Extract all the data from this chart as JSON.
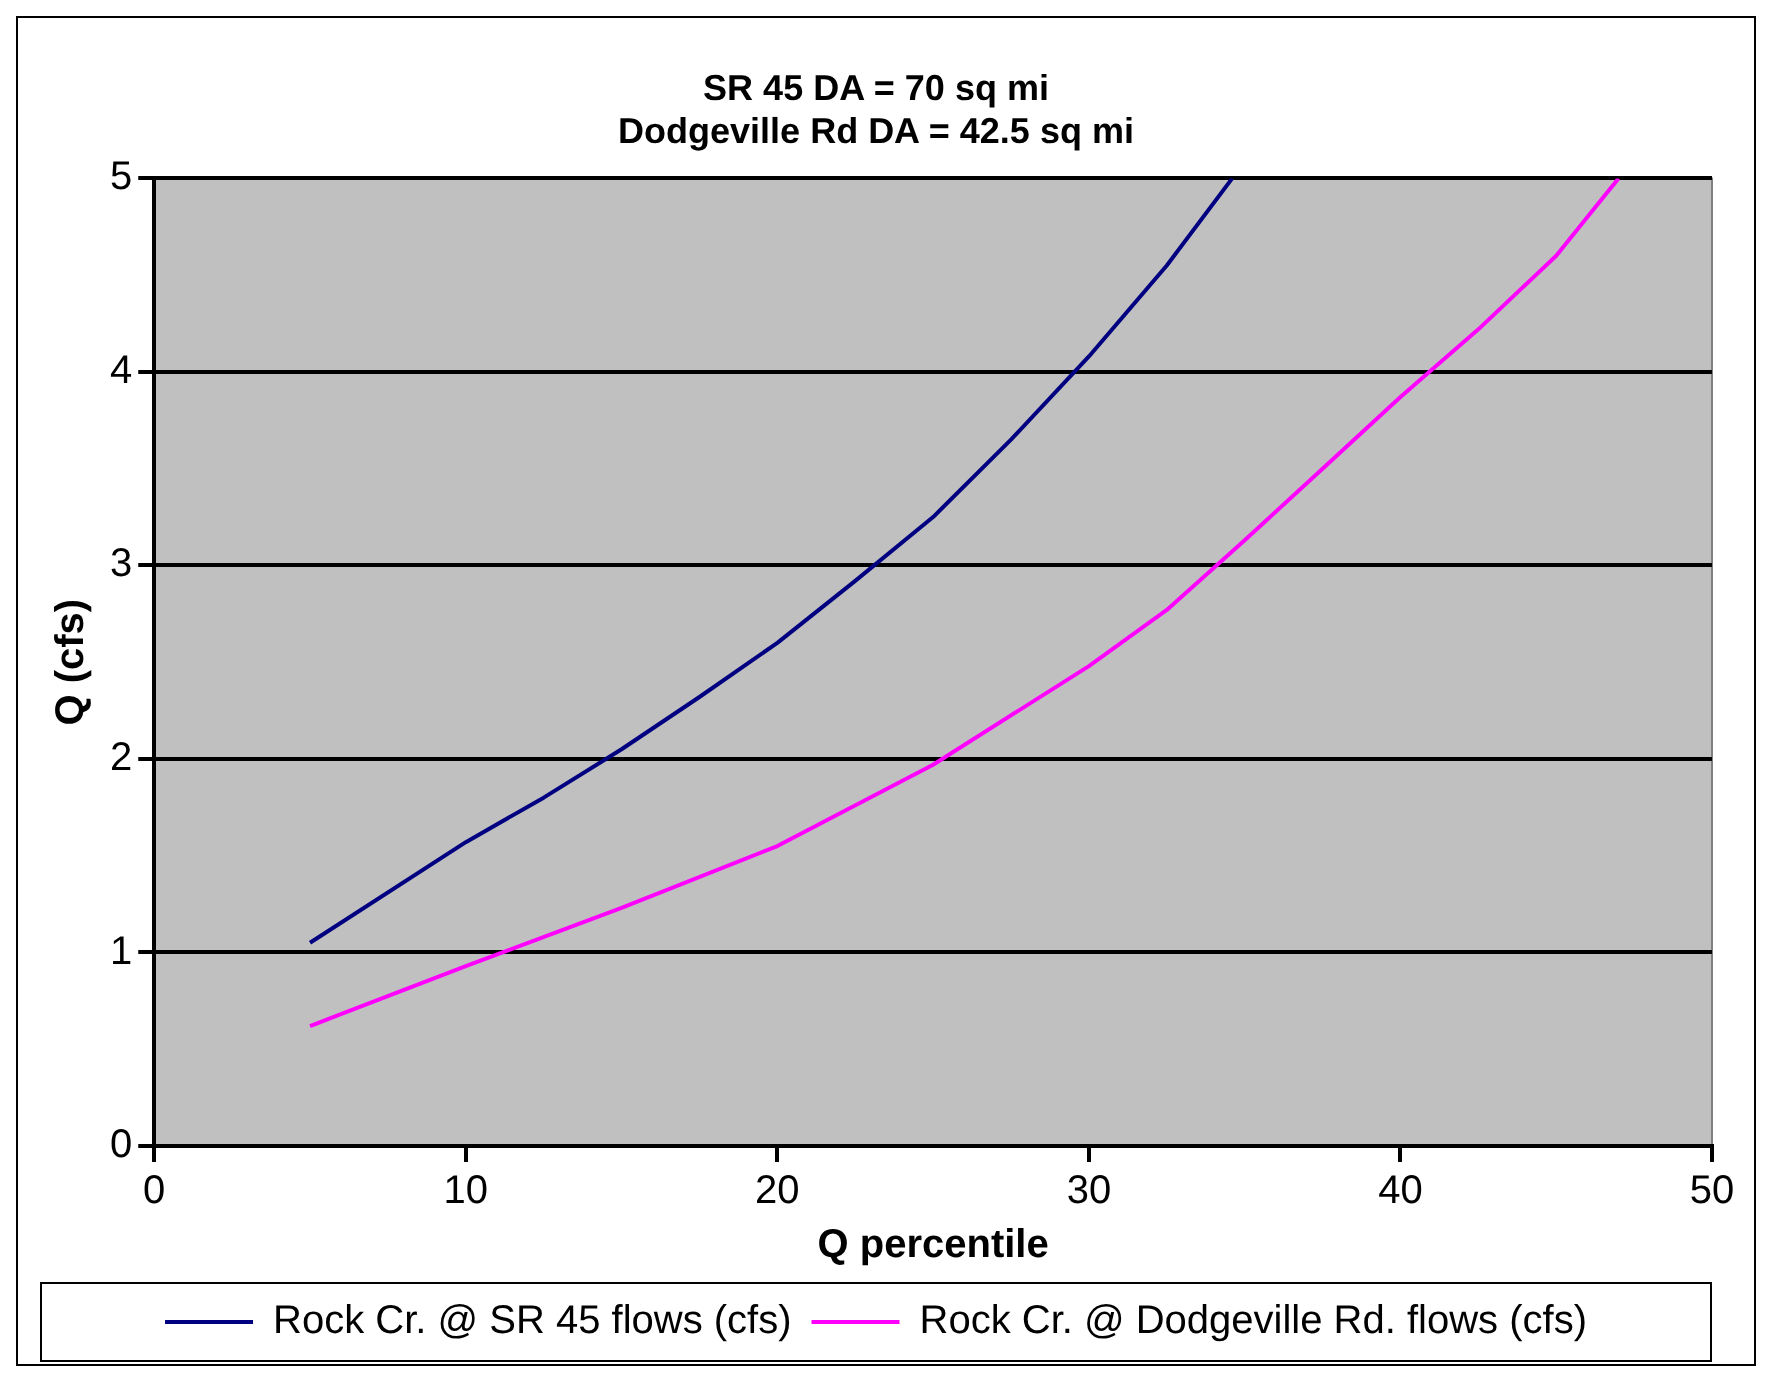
{
  "chart_data": {
    "type": "line",
    "title": "SR 45 DA = 70 sq mi\nDodgeville Rd DA = 42.5 sq mi",
    "xlabel": "Q percentile",
    "ylabel": "Q (cfs)",
    "xlim": [
      0,
      50
    ],
    "xticks": [
      0,
      10,
      20,
      30,
      40,
      50
    ],
    "ylim": [
      0,
      5
    ],
    "yticks": [
      0,
      1,
      2,
      3,
      4,
      5
    ],
    "grid": "y",
    "legend": "bottom",
    "marker": "none",
    "line_style": "solid",
    "series": [
      {
        "name": "Rock Cr. @ SR 45 flows (cfs)",
        "color": "#000080",
        "x": [
          5,
          10,
          12.5,
          15,
          17.5,
          20,
          22.5,
          25,
          27.5,
          30,
          32.5,
          34.6
        ],
        "values": [
          1.05,
          1.57,
          1.8,
          2.05,
          2.32,
          2.6,
          2.92,
          3.25,
          3.65,
          4.08,
          4.55,
          5.0
        ]
      },
      {
        "name": "Rock Cr. @ Dodgeville Rd. flows (cfs)",
        "color": "#ff00ff",
        "x": [
          5,
          10,
          15,
          20,
          25,
          30,
          32.5,
          35,
          37.5,
          40,
          42.5,
          45,
          46,
          47
        ],
        "values": [
          0.62,
          0.93,
          1.23,
          1.55,
          1.97,
          2.48,
          2.77,
          3.13,
          3.5,
          3.87,
          4.22,
          4.6,
          4.8,
          5.0
        ]
      }
    ]
  }
}
